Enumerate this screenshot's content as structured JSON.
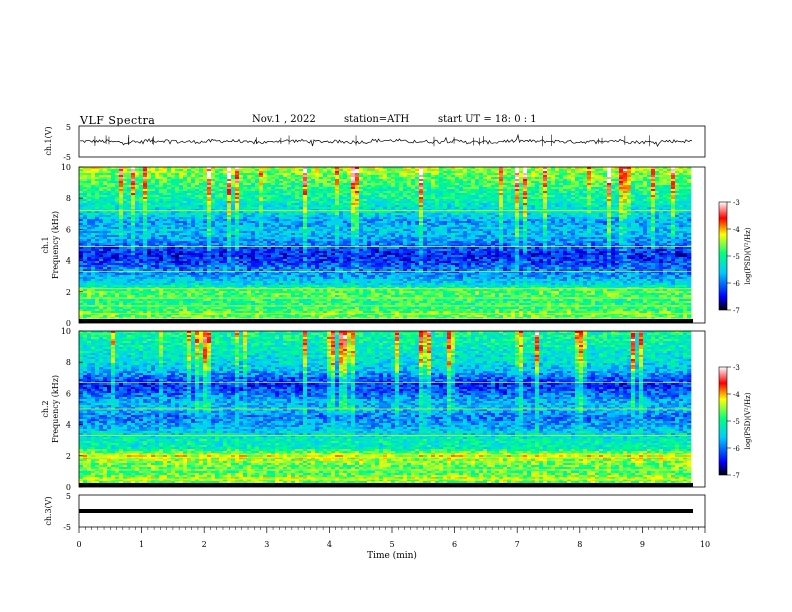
{
  "header": {
    "title": "VLF  Spectra",
    "date": "Nov.1  , 2022",
    "station": "station=ATH",
    "start": "start  UT  =   18: 0   : 1"
  },
  "colorbar": {
    "label": "log(PSD)(V²/Hz)",
    "ticks": [
      "-3",
      "-4",
      "-5",
      "-6",
      "-7"
    ],
    "range": [
      -7,
      -3
    ],
    "stops": [
      "#000000",
      "#0000ff",
      "#00ccff",
      "#00ff80",
      "#ffff00",
      "#ff0000",
      "#ffffff"
    ]
  },
  "chart_data": [
    {
      "type": "line",
      "panel": "ch1-waveform",
      "ylabel": "ch.1(V)",
      "ylim": [
        -5,
        5
      ],
      "yticks": [
        "5",
        "-5"
      ],
      "xlim": [
        0,
        10
      ],
      "note_values": "noisy trace centered near 0 V, amplitude about ±1 V",
      "samples": [
        0.1,
        -0.4,
        0.5,
        -0.2,
        0.3,
        -0.6,
        0.4,
        0.0,
        -0.3,
        0.6,
        -0.1,
        0.2,
        -0.5,
        0.3,
        0.1,
        -0.2,
        0.5,
        -0.4,
        0.2,
        0.0
      ]
    },
    {
      "type": "heatmap",
      "panel": "ch1-spectrogram",
      "ylabel": "Frequency (kHz)",
      "panel_label": "ch.1",
      "ylim": [
        0,
        10
      ],
      "yticks": [
        "0",
        "2",
        "4",
        "6",
        "8",
        "10"
      ],
      "xlim": [
        0,
        10
      ],
      "value_unit": "log(PSD)(V²/Hz)",
      "frequency_profile_khz": [
        0,
        0.5,
        1,
        1.5,
        2,
        2.5,
        3,
        3.5,
        4,
        4.5,
        5,
        5.5,
        6,
        6.5,
        7,
        7.5,
        8,
        8.5,
        9,
        9.5,
        10
      ],
      "level_profile": [
        -5.2,
        -4.6,
        -4.9,
        -4.9,
        -4.7,
        -5.4,
        -5.8,
        -6.0,
        -6.3,
        -6.4,
        -6.0,
        -5.7,
        -5.6,
        -5.8,
        -5.4,
        -5.3,
        -5.1,
        -5.0,
        -4.8,
        -4.6,
        -4.4
      ]
    },
    {
      "type": "heatmap",
      "panel": "ch2-spectrogram",
      "ylabel": "Frequency (kHz)",
      "panel_label": "ch.2",
      "ylim": [
        0,
        10
      ],
      "yticks": [
        "0",
        "2",
        "4",
        "6",
        "8",
        "10"
      ],
      "xlim": [
        0,
        10
      ],
      "value_unit": "log(PSD)(V²/Hz)",
      "frequency_profile_khz": [
        0,
        0.5,
        1,
        1.5,
        2,
        2.5,
        3,
        3.5,
        4,
        4.5,
        5,
        5.5,
        6,
        6.5,
        7,
        7.5,
        8,
        8.5,
        9,
        9.5,
        10
      ],
      "level_profile": [
        -5.0,
        -4.4,
        -4.8,
        -4.6,
        -4.3,
        -5.2,
        -5.2,
        -5.5,
        -5.8,
        -6.0,
        -5.6,
        -5.7,
        -6.1,
        -6.3,
        -6.1,
        -5.6,
        -5.4,
        -5.3,
        -5.2,
        -5.1,
        -5.0
      ]
    },
    {
      "type": "line",
      "panel": "ch3-waveform",
      "ylabel": "ch.3(V)",
      "ylim": [
        -5,
        5
      ],
      "yticks": [
        "5",
        "-5"
      ],
      "xlim": [
        0,
        10
      ],
      "xlabel": "Time  (min)",
      "xticks": [
        "0",
        "1",
        "2",
        "3",
        "4",
        "5",
        "6",
        "7",
        "8",
        "9",
        "10"
      ],
      "note_values": "flat saturated band near -1 V",
      "samples": [
        -1.0,
        -1.0,
        -1.0,
        -1.0,
        -1.0,
        -1.0,
        -1.0,
        -1.0,
        -1.0,
        -1.0
      ]
    }
  ]
}
